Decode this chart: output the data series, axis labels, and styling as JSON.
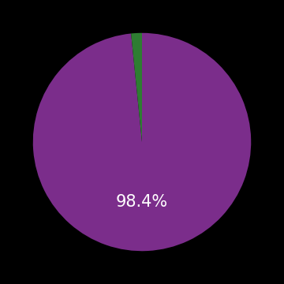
{
  "values": [
    98.4,
    1.6
  ],
  "colors": [
    "#7b2d8b",
    "#2e7d32"
  ],
  "label_text": "98.4%",
  "label_color": "#ffffff",
  "label_fontsize": 15,
  "background_color": "#000000",
  "startangle": 90,
  "figsize": [
    3.6,
    3.6
  ],
  "dpi": 100
}
